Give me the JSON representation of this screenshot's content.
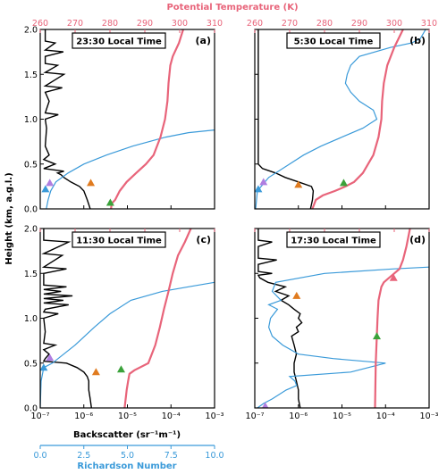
{
  "figure": {
    "top_axis_title": "Potential Temperature (K)",
    "y_axis_title": "Height (km, a.g.l.)",
    "bottom_axis_title": "Backscatter (sr⁻¹m⁻¹)",
    "ri_axis_title": "Richardson Number",
    "colors": {
      "theta": "#e8647a",
      "ri": "#3a9ad9",
      "backscatter": "#000000",
      "marker_orange": "#e07b1f",
      "marker_green": "#3aa23a",
      "marker_purple": "#b07ee0",
      "marker_blue": "#3a9ad9"
    }
  },
  "chart_data": {
    "type": "line",
    "axes": {
      "height_km": {
        "range": [
          0,
          2.0
        ],
        "ticks": [
          "0.0",
          "0.5",
          "1.0",
          "1.5",
          "2.0"
        ]
      },
      "theta_K": {
        "range": [
          260,
          310
        ],
        "ticks": [
          "260",
          "270",
          "280",
          "290",
          "300",
          "310"
        ]
      },
      "backscatter": {
        "scale": "log",
        "range": [
          1e-07,
          0.001
        ],
        "ticks": [
          "10⁻⁷",
          "10⁻⁶",
          "10⁻⁵",
          "10⁻⁴",
          "10⁻³"
        ]
      },
      "richardson": {
        "range": [
          0,
          10
        ],
        "ticks": [
          "0.0",
          "2.5",
          "5.0",
          "7.5",
          "10.0"
        ]
      }
    },
    "panels": [
      {
        "letter": "(a)",
        "time": "23:30 Local Time",
        "theta": [
          [
            0.0,
            280.3
          ],
          [
            0.06,
            280.5
          ],
          [
            0.1,
            281.5
          ],
          [
            0.2,
            282.8
          ],
          [
            0.3,
            284.8
          ],
          [
            0.4,
            287.5
          ],
          [
            0.5,
            290.3
          ],
          [
            0.6,
            292.5
          ],
          [
            0.8,
            294.5
          ],
          [
            1.0,
            295.8
          ],
          [
            1.2,
            296.5
          ],
          [
            1.4,
            296.8
          ],
          [
            1.6,
            297.3
          ],
          [
            1.7,
            298.0
          ],
          [
            1.85,
            299.8
          ],
          [
            2.0,
            301.0
          ]
        ],
        "ri": [
          [
            0.0,
            0.35
          ],
          [
            0.1,
            0.45
          ],
          [
            0.2,
            0.6
          ],
          [
            0.3,
            0.9
          ],
          [
            0.4,
            1.6
          ],
          [
            0.5,
            2.5
          ],
          [
            0.6,
            3.8
          ],
          [
            0.7,
            5.3
          ],
          [
            0.8,
            7.2
          ],
          [
            0.85,
            8.5
          ],
          [
            0.88,
            10.0
          ]
        ],
        "backscatter": [
          [
            0.0,
            1.4e-06
          ],
          [
            0.05,
            1.3e-06
          ],
          [
            0.1,
            1.2e-06
          ],
          [
            0.2,
            1e-06
          ],
          [
            0.25,
            8e-07
          ],
          [
            0.3,
            5e-07
          ],
          [
            0.35,
            3.5e-07
          ],
          [
            0.38,
            3e-07
          ],
          [
            0.4,
            2.5e-07
          ],
          [
            0.42,
            3.5e-07
          ],
          [
            0.45,
            1.2e-07
          ],
          [
            0.5,
            2.2e-07
          ],
          [
            0.55,
            1.2e-07
          ],
          [
            0.6,
            1.6e-07
          ],
          [
            0.7,
            1.3e-07
          ],
          [
            0.9,
            1.4e-07
          ],
          [
            1.0,
            1.3e-07
          ],
          [
            1.05,
            2.6e-07
          ],
          [
            1.07,
            1.3e-07
          ],
          [
            1.2,
            1.6e-07
          ],
          [
            1.3,
            1.3e-07
          ],
          [
            1.35,
            3.2e-07
          ],
          [
            1.37,
            1.3e-07
          ],
          [
            1.5,
            3.5e-07
          ],
          [
            1.52,
            1.3e-07
          ],
          [
            1.6,
            2.5e-07
          ],
          [
            1.62,
            1.3e-07
          ],
          [
            1.7,
            1.3e-07
          ],
          [
            1.75,
            3.4e-07
          ],
          [
            1.77,
            1.3e-07
          ],
          [
            1.85,
            2.2e-07
          ],
          [
            1.87,
            1.3e-07
          ],
          [
            2.0,
            1.3e-07
          ]
        ],
        "markers": [
          {
            "color": "orange",
            "theta": 274.5,
            "height": 0.29
          },
          {
            "color": "green",
            "theta": 280.1,
            "height": 0.07
          },
          {
            "color": "purple",
            "ri": 0.55,
            "height": 0.29
          },
          {
            "color": "blue",
            "ri": 0.3,
            "height": 0.22
          }
        ]
      },
      {
        "letter": "(b)",
        "time": "5:30 Local Time",
        "theta": [
          [
            0.0,
            276.5
          ],
          [
            0.1,
            277.5
          ],
          [
            0.15,
            279.5
          ],
          [
            0.2,
            283.0
          ],
          [
            0.25,
            286.0
          ],
          [
            0.3,
            288.5
          ],
          [
            0.4,
            291.0
          ],
          [
            0.6,
            294.0
          ],
          [
            0.8,
            295.5
          ],
          [
            1.0,
            296.3
          ],
          [
            1.2,
            296.5
          ],
          [
            1.4,
            297.0
          ],
          [
            1.6,
            298.0
          ],
          [
            1.8,
            300.0
          ],
          [
            2.0,
            302.5
          ]
        ],
        "ri": [
          [
            0.0,
            0.05
          ],
          [
            0.2,
            0.15
          ],
          [
            0.35,
            0.8
          ],
          [
            0.5,
            2.0
          ],
          [
            0.6,
            2.8
          ],
          [
            0.7,
            3.8
          ],
          [
            0.8,
            5.0
          ],
          [
            0.9,
            6.2
          ],
          [
            1.0,
            7.0
          ],
          [
            1.1,
            6.8
          ],
          [
            1.2,
            6.0
          ],
          [
            1.3,
            5.5
          ],
          [
            1.4,
            5.2
          ],
          [
            1.5,
            5.3
          ],
          [
            1.6,
            5.5
          ],
          [
            1.7,
            6.0
          ],
          [
            1.8,
            7.8
          ],
          [
            1.85,
            9.0
          ],
          [
            1.9,
            9.5
          ],
          [
            2.0,
            9.8
          ]
        ],
        "backscatter": [
          [
            0.0,
            1.9e-06
          ],
          [
            0.05,
            2e-06
          ],
          [
            0.1,
            2.1e-06
          ],
          [
            0.2,
            2.2e-06
          ],
          [
            0.25,
            2e-06
          ],
          [
            0.3,
            1e-06
          ],
          [
            0.35,
            5e-07
          ],
          [
            0.4,
            3e-07
          ],
          [
            0.45,
            1.5e-07
          ],
          [
            0.5,
            1.2e-07
          ],
          [
            2.0,
            1.2e-07
          ]
        ],
        "markers": [
          {
            "color": "orange",
            "theta": 272.5,
            "height": 0.27
          },
          {
            "color": "green",
            "theta": 285.5,
            "height": 0.29
          },
          {
            "color": "purple",
            "ri": 0.5,
            "height": 0.3
          },
          {
            "color": "blue",
            "ri": 0.2,
            "height": 0.22
          }
        ]
      },
      {
        "letter": "(c)",
        "time": "11:30 Local Time",
        "theta": [
          [
            0.0,
            284.2
          ],
          [
            0.2,
            284.8
          ],
          [
            0.3,
            285.2
          ],
          [
            0.38,
            285.6
          ],
          [
            0.42,
            287.0
          ],
          [
            0.5,
            291.0
          ],
          [
            0.7,
            293.0
          ],
          [
            0.9,
            294.3
          ],
          [
            1.1,
            295.5
          ],
          [
            1.3,
            296.8
          ],
          [
            1.5,
            298.0
          ],
          [
            1.7,
            299.5
          ],
          [
            1.85,
            301.5
          ],
          [
            2.0,
            303.2
          ]
        ],
        "ri": [
          [
            0.0,
            0.0
          ],
          [
            0.3,
            0.05
          ],
          [
            0.45,
            0.2
          ],
          [
            0.5,
            0.7
          ],
          [
            0.7,
            2.0
          ],
          [
            0.9,
            3.1
          ],
          [
            1.05,
            4.0
          ],
          [
            1.2,
            5.2
          ],
          [
            1.3,
            7.0
          ],
          [
            1.35,
            8.5
          ],
          [
            1.4,
            10.0
          ]
        ],
        "backscatter": [
          [
            0.0,
            1.5e-06
          ],
          [
            0.1,
            1.4e-06
          ],
          [
            0.2,
            1.3e-06
          ],
          [
            0.3,
            1.3e-06
          ],
          [
            0.35,
            1.2e-06
          ],
          [
            0.4,
            1e-06
          ],
          [
            0.45,
            7e-07
          ],
          [
            0.5,
            4e-07
          ],
          [
            0.52,
            1.2e-07
          ],
          [
            0.55,
            1.3e-07
          ],
          [
            0.6,
            1.6e-07
          ],
          [
            0.65,
            1.2e-07
          ],
          [
            0.7,
            2.2e-07
          ],
          [
            0.72,
            1.2e-07
          ],
          [
            0.85,
            1.3e-07
          ],
          [
            1.0,
            1.2e-07
          ],
          [
            1.05,
            2.6e-07
          ],
          [
            1.07,
            1.2e-07
          ],
          [
            1.1,
            1.3e-07
          ],
          [
            1.15,
            4.5e-07
          ],
          [
            1.17,
            1.2e-07
          ],
          [
            1.2,
            3.4e-07
          ],
          [
            1.22,
            1.2e-07
          ],
          [
            1.25,
            5.5e-07
          ],
          [
            1.27,
            1.2e-07
          ],
          [
            1.3,
            3e-07
          ],
          [
            1.32,
            1.2e-07
          ],
          [
            1.35,
            4e-07
          ],
          [
            1.37,
            1.2e-07
          ],
          [
            1.5,
            1.2e-07
          ],
          [
            1.55,
            4e-07
          ],
          [
            1.57,
            1.2e-07
          ],
          [
            1.7,
            3.2e-07
          ],
          [
            1.72,
            1.2e-07
          ],
          [
            1.85,
            4.5e-07
          ],
          [
            1.87,
            1.2e-07
          ],
          [
            2.0,
            1.2e-07
          ]
        ],
        "markers": [
          {
            "color": "orange",
            "theta": 276.0,
            "height": 0.4
          },
          {
            "color": "green",
            "theta": 283.2,
            "height": 0.43
          },
          {
            "color": "purple",
            "ri": 0.55,
            "height": 0.56
          },
          {
            "color": "blue",
            "ri": 0.2,
            "height": 0.45
          }
        ]
      },
      {
        "letter": "(d)",
        "time": "17:30 Local Time",
        "theta": [
          [
            0.0,
            294.5
          ],
          [
            0.5,
            294.7
          ],
          [
            0.8,
            295.0
          ],
          [
            1.0,
            295.2
          ],
          [
            1.2,
            295.5
          ],
          [
            1.35,
            296.3
          ],
          [
            1.4,
            297.0
          ],
          [
            1.45,
            298.5
          ],
          [
            1.5,
            300.0
          ],
          [
            1.55,
            301.5
          ],
          [
            1.65,
            302.5
          ],
          [
            1.8,
            303.5
          ],
          [
            1.9,
            304.0
          ],
          [
            2.0,
            304.5
          ]
        ],
        "ri": [
          [
            0.0,
            0.15
          ],
          [
            0.05,
            0.5
          ],
          [
            0.1,
            1.0
          ],
          [
            0.2,
            1.8
          ],
          [
            0.25,
            2.4
          ],
          [
            0.3,
            2.3
          ],
          [
            0.35,
            2.0
          ],
          [
            0.4,
            5.5
          ],
          [
            0.5,
            7.5
          ],
          [
            0.55,
            4.5
          ],
          [
            0.6,
            2.5
          ],
          [
            0.7,
            1.6
          ],
          [
            0.8,
            1.0
          ],
          [
            0.9,
            0.8
          ],
          [
            1.0,
            0.9
          ],
          [
            1.1,
            1.3
          ],
          [
            1.15,
            0.8
          ],
          [
            1.2,
            1.5
          ],
          [
            1.3,
            1.0
          ],
          [
            1.4,
            1.2
          ],
          [
            1.5,
            4.0
          ],
          [
            1.55,
            8.0
          ],
          [
            1.57,
            10.0
          ]
        ],
        "backscatter": [
          [
            0.0,
            1.1e-06
          ],
          [
            0.1,
            1e-06
          ],
          [
            0.2,
            1e-06
          ],
          [
            0.3,
            9e-07
          ],
          [
            0.4,
            8e-07
          ],
          [
            0.5,
            8e-07
          ],
          [
            0.6,
            9e-07
          ],
          [
            0.7,
            8e-07
          ],
          [
            0.8,
            7e-07
          ],
          [
            0.85,
            1e-06
          ],
          [
            0.9,
            9e-07
          ],
          [
            0.95,
            1.2e-06
          ],
          [
            1.0,
            1e-06
          ],
          [
            1.05,
            1.1e-06
          ],
          [
            1.1,
            8e-07
          ],
          [
            1.15,
            6e-07
          ],
          [
            1.2,
            4e-07
          ],
          [
            1.25,
            6e-07
          ],
          [
            1.3,
            3e-07
          ],
          [
            1.35,
            5e-07
          ],
          [
            1.4,
            2e-07
          ],
          [
            1.45,
            1.3e-07
          ],
          [
            1.48,
            1.2e-07
          ],
          [
            1.5,
            2.5e-07
          ],
          [
            1.52,
            1.2e-07
          ],
          [
            1.6,
            1.2e-07
          ],
          [
            1.65,
            3.2e-07
          ],
          [
            1.67,
            1.2e-07
          ],
          [
            1.8,
            1.2e-07
          ],
          [
            1.85,
            2.5e-07
          ],
          [
            1.87,
            1.2e-07
          ],
          [
            2.0,
            1.2e-07
          ]
        ],
        "markers": [
          {
            "color": "orange",
            "theta": 272.0,
            "height": 1.25
          },
          {
            "color": "green",
            "theta": 295.0,
            "height": 0.8
          },
          {
            "color": "purple",
            "ri": 0.6,
            "height": 0.02
          },
          {
            "color": "pink",
            "theta": 299.8,
            "height": 1.45
          }
        ]
      }
    ]
  }
}
